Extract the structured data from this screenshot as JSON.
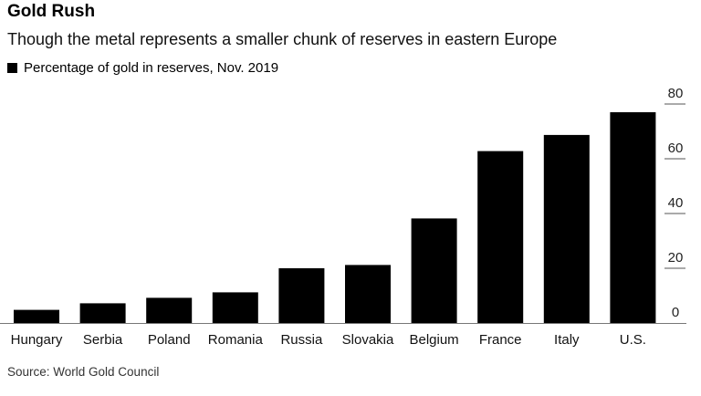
{
  "chart_data": {
    "type": "bar",
    "title": "Gold Rush",
    "subtitle": "Though the metal represents a smaller chunk of reserves in eastern Europe",
    "legend": "Percentage of gold in reserves, Nov. 2019",
    "legend_placement": "top-left",
    "categories": [
      "Hungary",
      "Serbia",
      "Poland",
      "Romania",
      "Russia",
      "Slovakia",
      "Belgium",
      "France",
      "Italy",
      "U.S."
    ],
    "values": [
      4.8,
      7.2,
      9.2,
      11.2,
      20.0,
      21.2,
      38.2,
      62.8,
      68.7,
      77.0
    ],
    "yticks": [
      0,
      20,
      40,
      60,
      80
    ],
    "ylim": [
      0,
      80
    ],
    "xlabel": "",
    "ylabel": "",
    "source": "Source: World Gold Council",
    "bar_color": "#000000"
  }
}
